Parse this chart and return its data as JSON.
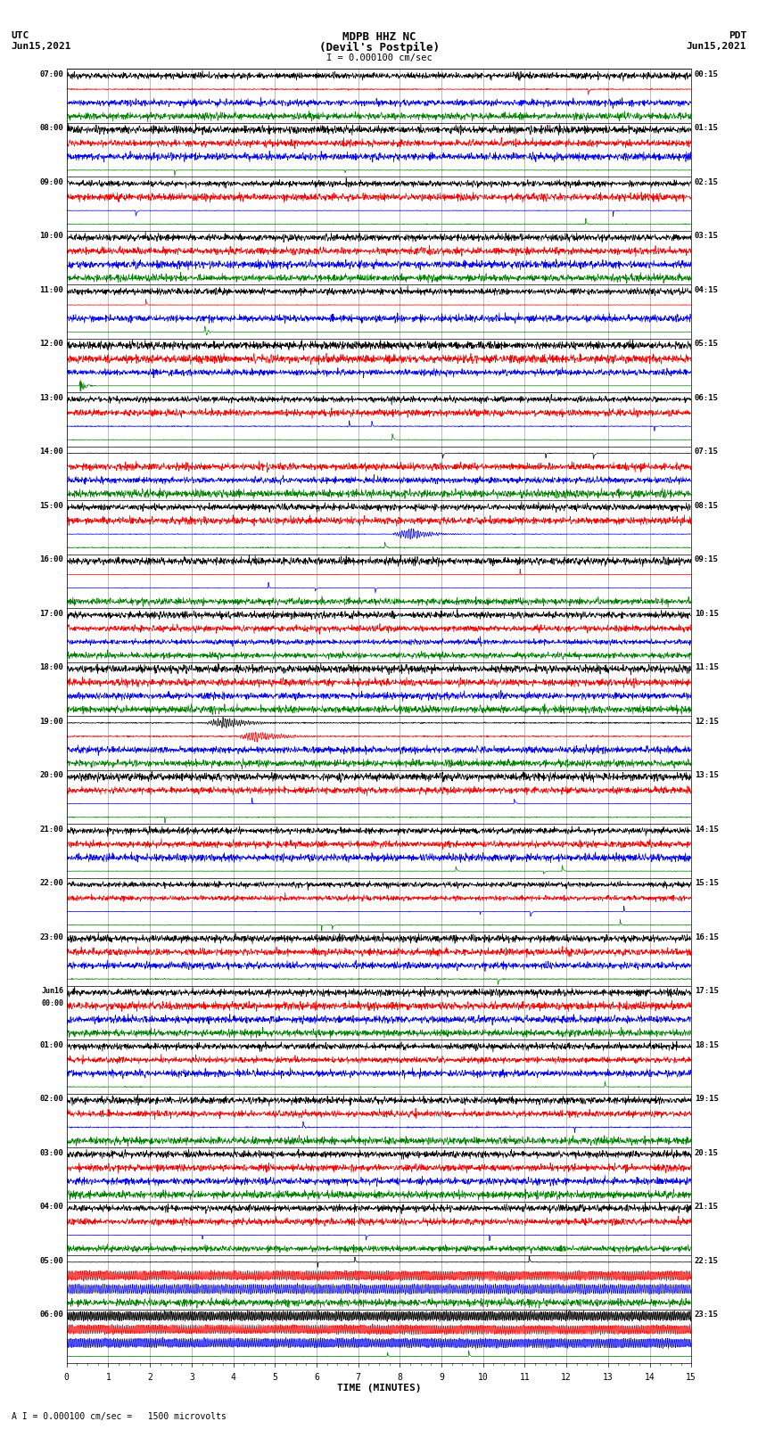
{
  "title_line1": "MDPB HHZ NC",
  "title_line2": "(Devil’s Postpile)",
  "scale_label": "I = 0.000100 cm/sec",
  "footer_label": "A I = 0.000100 cm/sec =   1500 microvolts",
  "utc_label1": "UTC",
  "utc_label2": "Jun15,2021",
  "pdt_label1": "PDT",
  "pdt_label2": "Jun15,2021",
  "xlabel": "TIME (MINUTES)",
  "left_times": [
    "07:00",
    "08:00",
    "09:00",
    "10:00",
    "11:00",
    "12:00",
    "13:00",
    "14:00",
    "15:00",
    "16:00",
    "17:00",
    "18:00",
    "19:00",
    "20:00",
    "21:00",
    "22:00",
    "23:00",
    "Jun16\n00:00",
    "01:00",
    "02:00",
    "03:00",
    "04:00",
    "05:00",
    "06:00"
  ],
  "right_times": [
    "00:15",
    "01:15",
    "02:15",
    "03:15",
    "04:15",
    "05:15",
    "06:15",
    "07:15",
    "08:15",
    "09:15",
    "10:15",
    "11:15",
    "12:15",
    "13:15",
    "14:15",
    "15:15",
    "16:15",
    "17:15",
    "18:15",
    "19:15",
    "20:15",
    "21:15",
    "22:15",
    "23:15"
  ],
  "n_rows": 24,
  "traces_per_row": 4,
  "colors": [
    "black",
    "red",
    "blue",
    "green"
  ],
  "bg_color": "white",
  "grid_color": "#888888",
  "line_width": 0.5,
  "fig_width": 8.5,
  "fig_height": 16.13,
  "dpi": 100,
  "n_points": 1800,
  "minutes": 15
}
